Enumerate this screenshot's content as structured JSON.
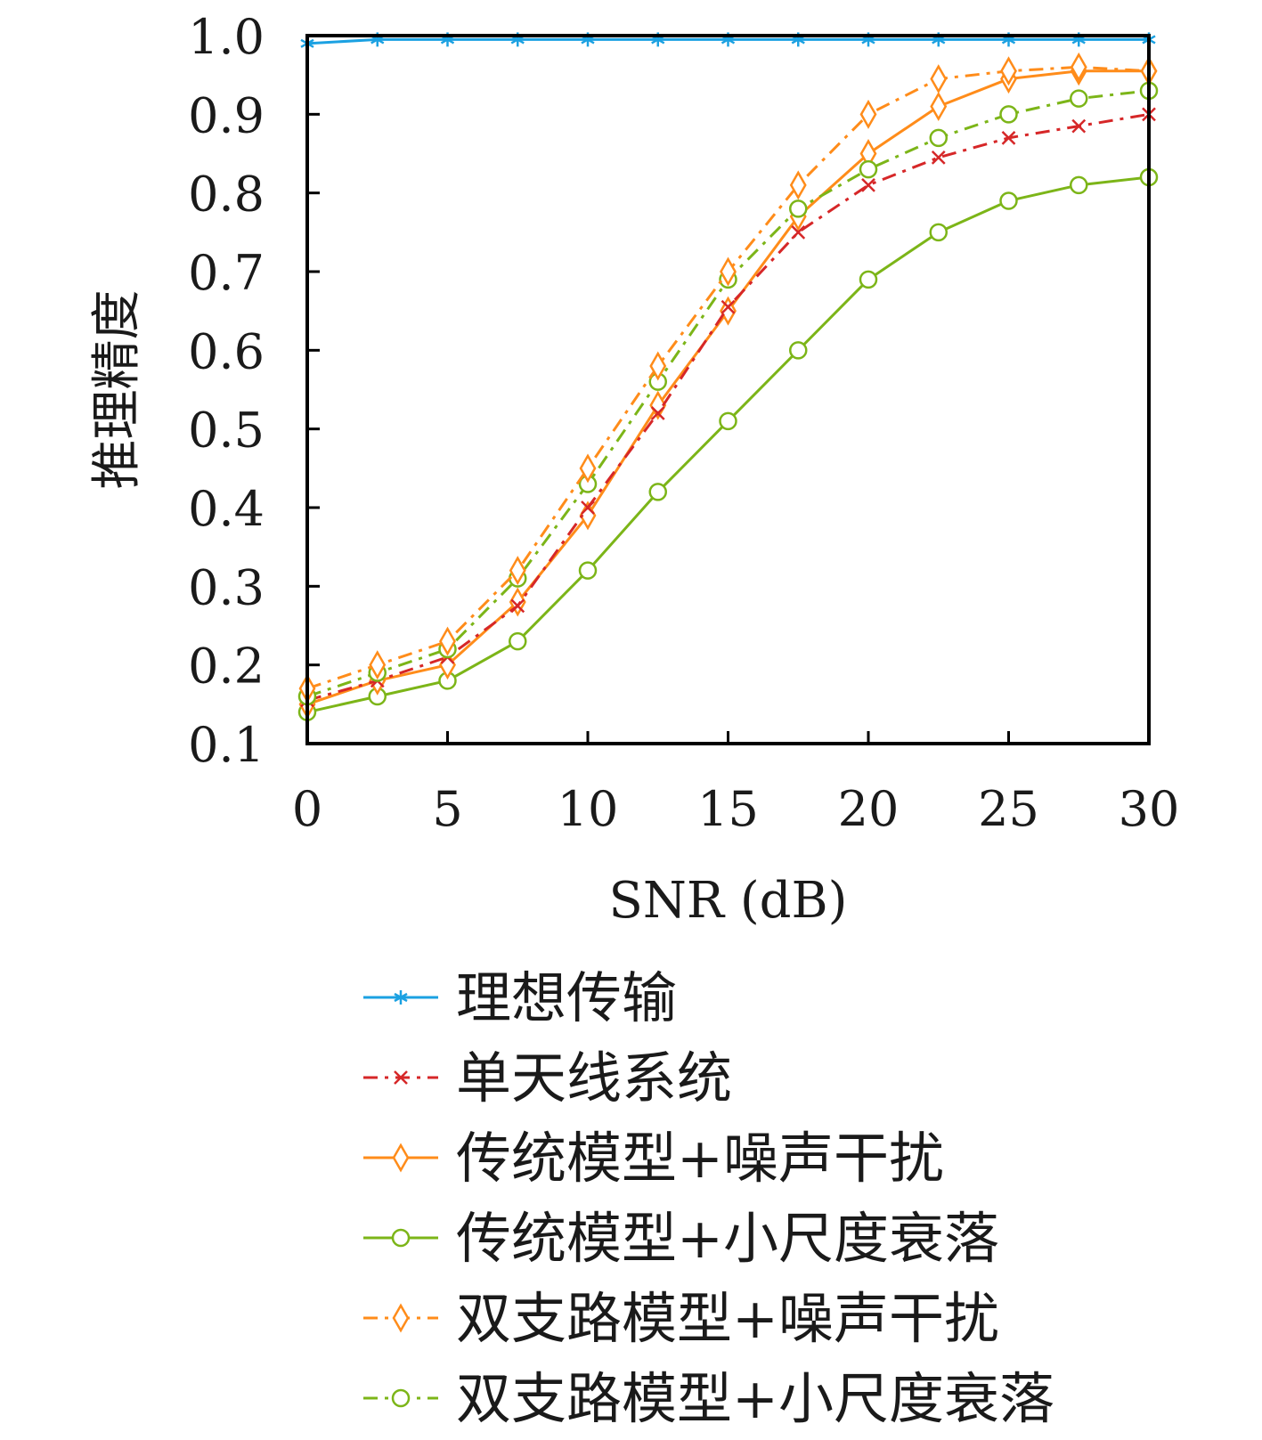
{
  "chart_data": {
    "type": "line",
    "xlabel": "SNR (dB)",
    "ylabel": "推理精度",
    "xlim": [
      0,
      30
    ],
    "ylim": [
      0.1,
      1.0
    ],
    "xticks": [
      "0",
      "5",
      "10",
      "15",
      "20",
      "25",
      "30"
    ],
    "yticks": [
      "0.1",
      "0.2",
      "0.3",
      "0.4",
      "0.5",
      "0.6",
      "0.7",
      "0.8",
      "0.9",
      "1.0"
    ],
    "grid": false,
    "legend_position": "bottom",
    "x": [
      0,
      2.5,
      5,
      7.5,
      10,
      12.5,
      15,
      17.5,
      20,
      22.5,
      25,
      27.5,
      30
    ],
    "series": [
      {
        "name": "理想传输",
        "color": "#1ba1e2",
        "dash": "solid",
        "marker": "asterisk",
        "values": [
          0.99,
          0.995,
          0.995,
          0.995,
          0.995,
          0.995,
          0.995,
          0.995,
          0.995,
          0.995,
          0.995,
          0.995,
          0.995
        ]
      },
      {
        "name": "单天线系统",
        "color": "#d62728",
        "dash": "dashdot",
        "marker": "x",
        "values": [
          0.155,
          0.18,
          0.21,
          0.275,
          0.4,
          0.52,
          0.655,
          0.75,
          0.81,
          0.845,
          0.87,
          0.885,
          0.9
        ]
      },
      {
        "name": "传统模型+噪声干扰",
        "color": "#ff8c1a",
        "dash": "solid",
        "marker": "diamond",
        "values": [
          0.15,
          0.18,
          0.2,
          0.28,
          0.39,
          0.53,
          0.65,
          0.77,
          0.85,
          0.91,
          0.945,
          0.955,
          0.955
        ]
      },
      {
        "name": "传统模型+小尺度衰落",
        "color": "#7cb518",
        "dash": "solid",
        "marker": "circle",
        "values": [
          0.14,
          0.16,
          0.18,
          0.23,
          0.32,
          0.42,
          0.51,
          0.6,
          0.69,
          0.75,
          0.79,
          0.81,
          0.82
        ]
      },
      {
        "name": "双支路模型+噪声干扰",
        "color": "#ff8c1a",
        "dash": "dashdot",
        "marker": "diamond",
        "values": [
          0.17,
          0.2,
          0.23,
          0.32,
          0.45,
          0.58,
          0.7,
          0.81,
          0.9,
          0.945,
          0.955,
          0.96,
          0.955
        ]
      },
      {
        "name": "双支路模型+小尺度衰落",
        "color": "#7cb518",
        "dash": "dashdot",
        "marker": "circle",
        "values": [
          0.16,
          0.19,
          0.22,
          0.31,
          0.43,
          0.56,
          0.69,
          0.78,
          0.83,
          0.87,
          0.9,
          0.92,
          0.93
        ]
      }
    ]
  }
}
